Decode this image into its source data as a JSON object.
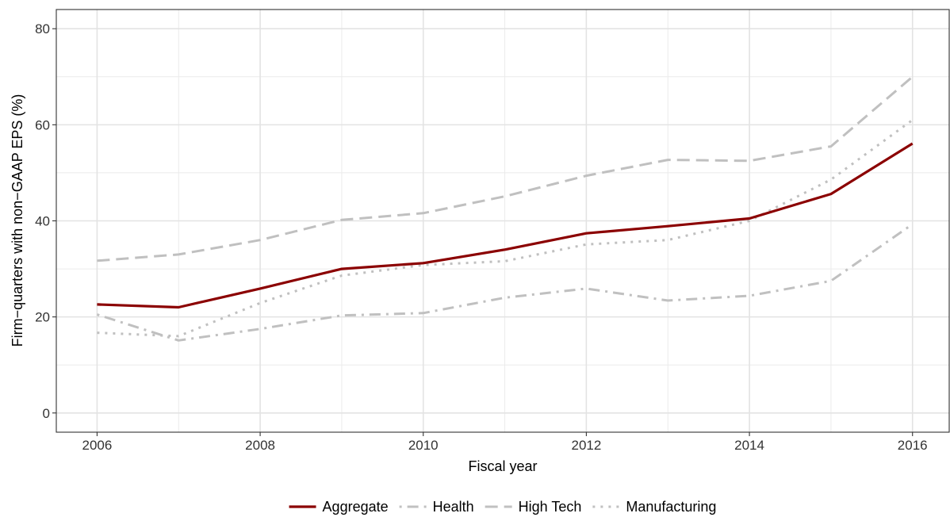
{
  "chart_data": {
    "type": "line",
    "title": "",
    "xlabel": "Fiscal year",
    "ylabel": "Firm−quarters with non−GAAP EPS (%)",
    "x": [
      2006,
      2007,
      2008,
      2009,
      2010,
      2011,
      2012,
      2013,
      2014,
      2015,
      2016
    ],
    "xlim": [
      2005.5,
      2016.45
    ],
    "ylim": [
      -4,
      84
    ],
    "x_ticks": [
      2006,
      2008,
      2010,
      2012,
      2014,
      2016
    ],
    "x_tick_labels": [
      "2006",
      "2008",
      "2010",
      "2012",
      "2014",
      "2016"
    ],
    "y_ticks": [
      0,
      20,
      40,
      60,
      80
    ],
    "y_tick_labels": [
      "0",
      "20",
      "40",
      "60",
      "80"
    ],
    "grid": true,
    "legend_position": "bottom",
    "series": [
      {
        "name": "Aggregate",
        "color": "#8b0000",
        "dash": "solid",
        "values": [
          22.6,
          22.0,
          25.9,
          30.0,
          31.2,
          34.0,
          37.4,
          38.9,
          40.5,
          45.6,
          56.1
        ]
      },
      {
        "name": "Health",
        "color": "#c0c0c0",
        "dash": "dotdash",
        "values": [
          20.5,
          15.1,
          17.5,
          20.3,
          20.8,
          24.0,
          25.9,
          23.4,
          24.4,
          27.5,
          39.3
        ]
      },
      {
        "name": "High Tech",
        "color": "#c0c0c0",
        "dash": "dashed",
        "values": [
          31.7,
          33.0,
          36.0,
          40.2,
          41.6,
          45.1,
          49.4,
          52.7,
          52.5,
          55.5,
          70.0
        ]
      },
      {
        "name": "Manufacturing",
        "color": "#c0c0c0",
        "dash": "dotted",
        "values": [
          16.7,
          16.0,
          22.9,
          28.6,
          30.8,
          31.6,
          35.1,
          36.0,
          40.0,
          48.6,
          61.0
        ]
      }
    ]
  }
}
